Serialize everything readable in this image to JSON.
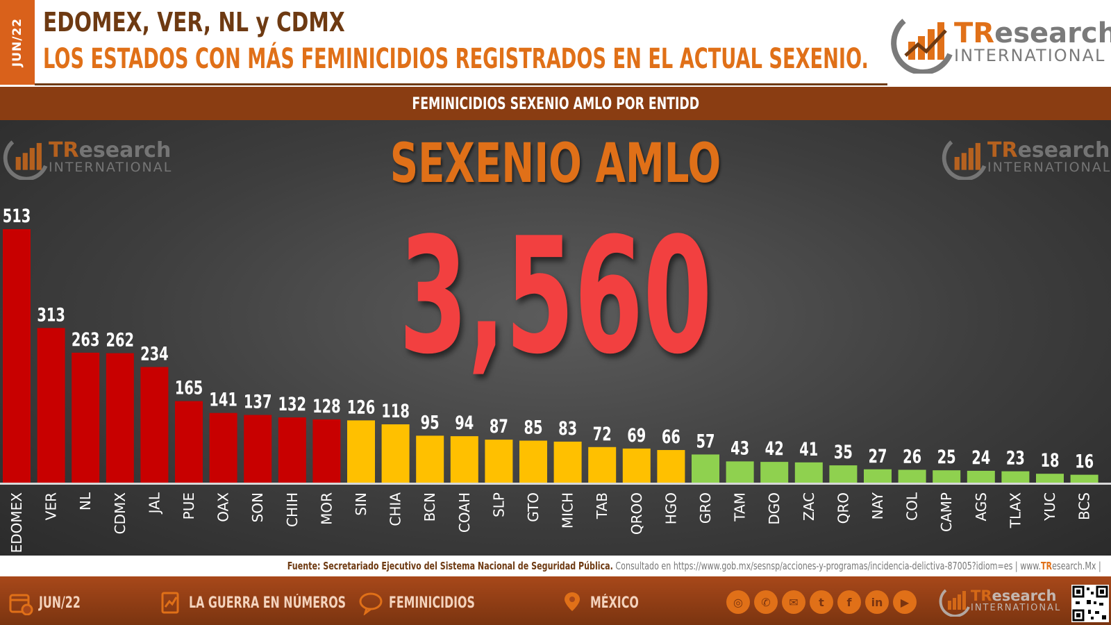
{
  "header": {
    "side_tab": "JUN/22",
    "title_line1": "EDOMEX, VER, NL y CDMX",
    "title_line2": "LOS ESTADOS CON MÁS FEMINICIDIOS REGISTRADOS EN EL ACTUAL SEXENIO.",
    "subtitle": "FEMINICIDIOS SEXENIO AMLO POR ENTIDD"
  },
  "logo": {
    "brand_part1": "TR",
    "brand_part2": "esearch",
    "brand_sub": "INTERNATIONAL"
  },
  "chart_data": {
    "type": "bar",
    "title": "SEXENIO AMLO",
    "total": "3,560",
    "categories": [
      "EDOMEX",
      "VER",
      "NL",
      "CDMX",
      "JAL",
      "PUE",
      "OAX",
      "SON",
      "CHIH",
      "MOR",
      "SIN",
      "CHIA",
      "BCN",
      "COAH",
      "SLP",
      "GTO",
      "MICH",
      "TAB",
      "QROO",
      "HGO",
      "GRO",
      "TAM",
      "DGO",
      "ZAC",
      "QRO",
      "NAY",
      "COL",
      "CAMP",
      "AGS",
      "TLAX",
      "YUC",
      "BCS"
    ],
    "values": [
      513,
      313,
      263,
      262,
      234,
      165,
      141,
      137,
      132,
      128,
      126,
      118,
      95,
      94,
      87,
      85,
      83,
      72,
      69,
      66,
      57,
      43,
      42,
      41,
      35,
      27,
      26,
      25,
      24,
      23,
      18,
      16
    ],
    "colors": {
      "red": "#c80000",
      "yellow": "#ffc000",
      "green": "#8fd14f"
    },
    "ylim": [
      0,
      513
    ],
    "grid": false,
    "legend": "none"
  },
  "source": {
    "label": "Fuente: Secretariado Ejecutivo del Sistema Nacional de Seguridad Pública.",
    "consulted": "Consultado en https://www.gob.mx/sesnsp/acciones-y-programas/incidencia-delictiva-87005?idiom=es |",
    "web_prefix": "www.",
    "web_brand": "TR",
    "web_suffix": "esearch.Mx |"
  },
  "footer": {
    "date": "JUN/22",
    "section": "LA GUERRA EN NÚMEROS",
    "topic": "FEMINICIDIOS",
    "country": "MÉXICO",
    "social_icons": [
      "globe-icon",
      "phone-icon",
      "mail-icon",
      "twitter-icon",
      "facebook-icon",
      "linkedin-icon",
      "youtube-icon"
    ]
  },
  "colors": {
    "accent": "#e07018",
    "brown": "#6e3a12",
    "band": "#8a3d12",
    "total": "#f24040"
  }
}
